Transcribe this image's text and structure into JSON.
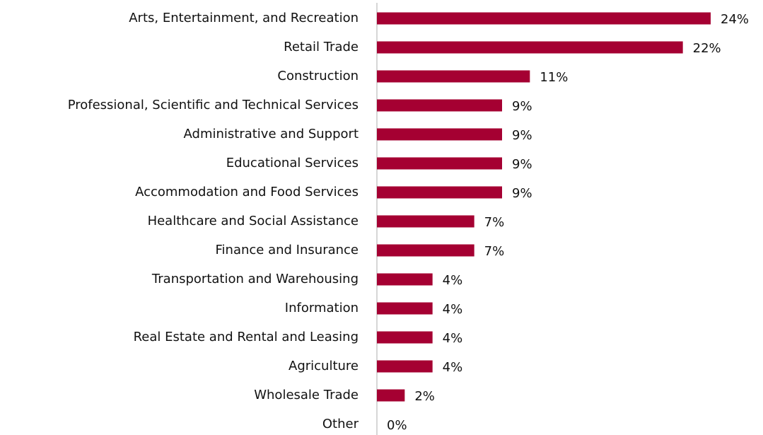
{
  "chart_data": {
    "type": "bar",
    "orientation": "horizontal",
    "categories": [
      "Arts, Entertainment, and Recreation",
      "Retail Trade",
      "Construction",
      "Professional, Scientific and Technical Services",
      "Administrative and Support",
      "Educational Services",
      "Accommodation and Food Services",
      "Healthcare and Social Assistance",
      "Finance and Insurance",
      "Transportation and Warehousing",
      "Information",
      "Real Estate and Rental and Leasing",
      "Agriculture",
      "Wholesale Trade",
      "Other"
    ],
    "values": [
      24,
      22,
      11,
      9,
      9,
      9,
      9,
      7,
      7,
      4,
      4,
      4,
      4,
      2,
      0
    ],
    "value_labels": [
      "24%",
      "22%",
      "11%",
      "9%",
      "9%",
      "9%",
      "9%",
      "7%",
      "7%",
      "4%",
      "4%",
      "4%",
      "4%",
      "2%",
      "0%"
    ],
    "color": "#a50032"
  }
}
